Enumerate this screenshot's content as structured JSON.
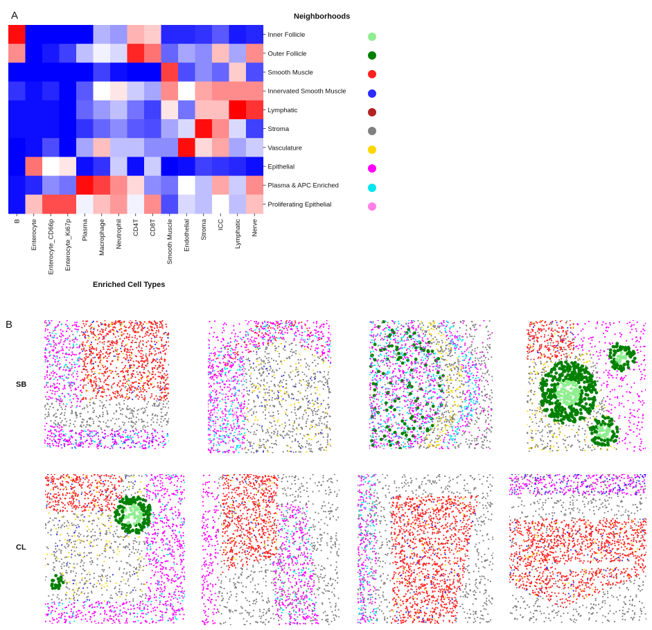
{
  "panel_a_label": "A",
  "panel_b_label": "B",
  "chart_data": {
    "type": "heatmap",
    "title": "",
    "xlabel": "Enriched Cell Types",
    "ylabel": "",
    "columns": [
      "B",
      "Enterocyte",
      "Enterocyte_CD66p",
      "Enterocyte_Ki67p",
      "Plasma",
      "Macrophage",
      "Neutrophil",
      "CD4T",
      "CD8T",
      "Smooth Muscle",
      "Endothelial",
      "Stroma",
      "ICC",
      "Lymphatic",
      "Nerve"
    ],
    "rows": [
      "Inner Follicle",
      "Outer Follicle",
      "Smooth Muscle",
      "Innervated Smooth Muscle",
      "Lymphatic",
      "Stroma",
      "Vasculature",
      "Epithelial",
      "Plasma & APC Enriched",
      "Proliferating Epithelial"
    ],
    "value_range": [
      -1,
      1
    ],
    "colormap": "bwr",
    "values": [
      [
        0.95,
        -1.0,
        -1.0,
        -1.0,
        -1.0,
        -0.3,
        -0.4,
        0.3,
        0.2,
        -0.85,
        -0.85,
        -0.8,
        -0.65,
        -0.9,
        -0.85
      ],
      [
        0.45,
        -1.0,
        -0.9,
        -0.75,
        -0.25,
        -0.05,
        -0.15,
        0.85,
        0.55,
        -0.6,
        -0.35,
        -0.45,
        0.25,
        -0.35,
        0.45
      ],
      [
        -1.0,
        -1.0,
        -1.0,
        -1.0,
        -1.0,
        -0.75,
        -0.95,
        -1.0,
        -1.0,
        0.75,
        -0.7,
        -0.45,
        -0.6,
        0.2,
        -0.7
      ],
      [
        -0.8,
        -0.95,
        -0.85,
        -1.0,
        -0.65,
        0.0,
        0.1,
        -0.2,
        -0.35,
        0.45,
        0.0,
        0.35,
        0.45,
        0.45,
        0.45
      ],
      [
        -0.95,
        -0.95,
        -0.95,
        -1.0,
        -0.6,
        -0.4,
        -0.25,
        -0.55,
        -0.75,
        0.1,
        -0.55,
        0.25,
        0.25,
        1.0,
        0.8
      ],
      [
        -0.95,
        -0.95,
        -0.95,
        -1.0,
        -0.8,
        -0.6,
        -0.45,
        -0.65,
        -0.7,
        -0.35,
        -0.15,
        0.95,
        0.45,
        -0.15,
        -0.75
      ],
      [
        -1.0,
        -0.95,
        -0.7,
        -1.0,
        -0.35,
        0.25,
        -0.25,
        -0.25,
        -0.45,
        -0.45,
        0.95,
        0.15,
        0.35,
        -0.35,
        -0.2
      ],
      [
        -1.0,
        0.55,
        0.0,
        0.1,
        -0.95,
        -0.8,
        -0.2,
        -0.95,
        -0.2,
        -1.0,
        -0.95,
        -0.75,
        -0.8,
        -0.85,
        -0.95
      ],
      [
        -0.95,
        -0.85,
        -0.45,
        -0.55,
        0.95,
        0.75,
        0.45,
        0.15,
        -0.45,
        -0.55,
        0.0,
        -0.25,
        0.35,
        -0.2,
        0.45
      ],
      [
        -0.95,
        0.25,
        0.7,
        0.7,
        -0.05,
        0.25,
        0.4,
        -0.05,
        0.45,
        -0.7,
        -0.15,
        -0.25,
        0.0,
        -0.25,
        0.25
      ]
    ],
    "legend": {
      "title": "Neighborhoods",
      "entries": [
        {
          "label": "Inner Follicle",
          "color": "#90ee90"
        },
        {
          "label": "Outer Follicle",
          "color": "#008000"
        },
        {
          "label": "Smooth Muscle",
          "color": "#ff2020"
        },
        {
          "label": "Innervated Smooth Muscle",
          "color": "#2c2cff"
        },
        {
          "label": "Lymphatic",
          "color": "#b22222"
        },
        {
          "label": "Stroma",
          "color": "#808080"
        },
        {
          "label": "Vasculature",
          "color": "#ffd700"
        },
        {
          "label": "Epithelial",
          "color": "#ff00ff"
        },
        {
          "label": "Plasma & APC Enriched",
          "color": "#00e5ee"
        },
        {
          "label": "Proliferating Epithelial",
          "color": "#ff7fe6"
        }
      ]
    }
  },
  "tissue_rows": [
    {
      "label": "SB",
      "count": 4
    },
    {
      "label": "CL",
      "count": 4
    }
  ]
}
